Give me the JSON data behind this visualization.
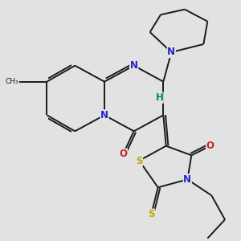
{
  "bg_color": "#e2e2e2",
  "bond_color": "#1a1a1a",
  "N_color": "#2222cc",
  "O_color": "#cc2222",
  "S_color": "#bbaa00",
  "H_color": "#008080",
  "font_size": 8.5,
  "lw": 1.4,
  "xlim": [
    0,
    10
  ],
  "ylim": [
    0,
    10
  ]
}
